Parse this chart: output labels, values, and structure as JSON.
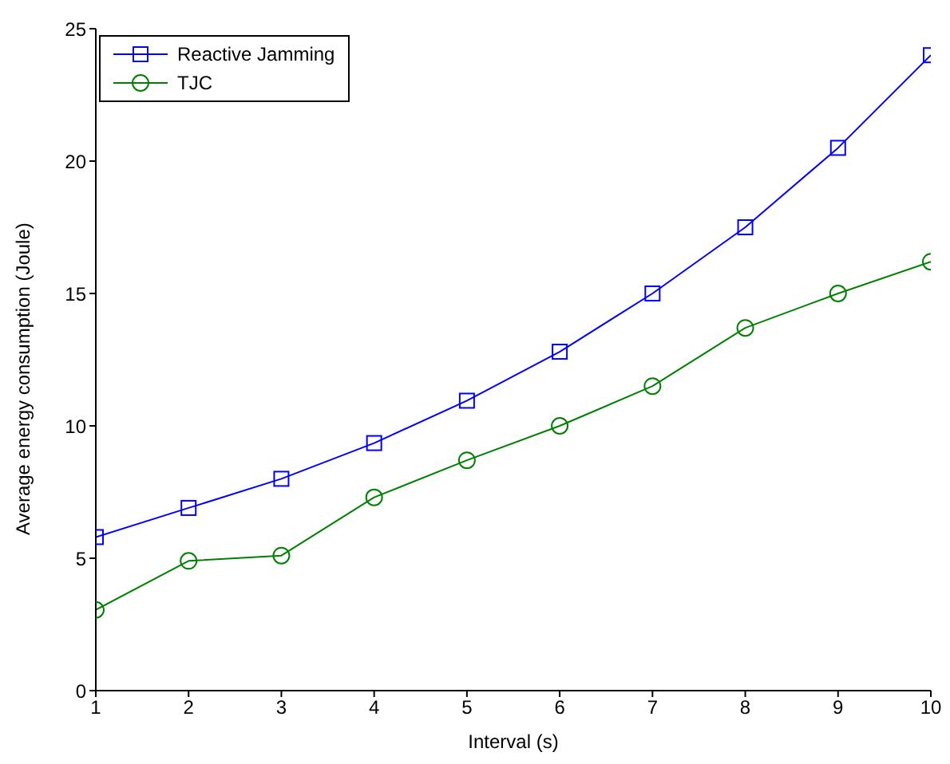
{
  "chart_data": {
    "type": "line",
    "xlabel": "Interval (s)",
    "ylabel": "Average energy consumption (Joule)",
    "x": [
      1,
      2,
      3,
      4,
      5,
      6,
      7,
      8,
      9,
      10
    ],
    "series": [
      {
        "name": "Reactive Jamming",
        "color": "#0000ff",
        "marker": "square",
        "values": [
          5.8,
          6.9,
          8.0,
          9.35,
          10.95,
          12.8,
          15.0,
          17.5,
          20.5,
          24.0
        ]
      },
      {
        "name": "TJC",
        "color": "#008000",
        "marker": "circle",
        "values": [
          3.05,
          4.9,
          5.1,
          7.3,
          8.7,
          10.0,
          11.5,
          13.7,
          15.0,
          16.2
        ]
      }
    ],
    "xlim": [
      1,
      10
    ],
    "xticks": [
      1,
      2,
      3,
      4,
      5,
      6,
      7,
      8,
      9,
      10
    ],
    "ylim": [
      0,
      25
    ],
    "yticks": [
      0,
      5,
      10,
      15,
      20,
      25
    ],
    "grid": false,
    "legend": "top left",
    "line_style": "solid"
  }
}
